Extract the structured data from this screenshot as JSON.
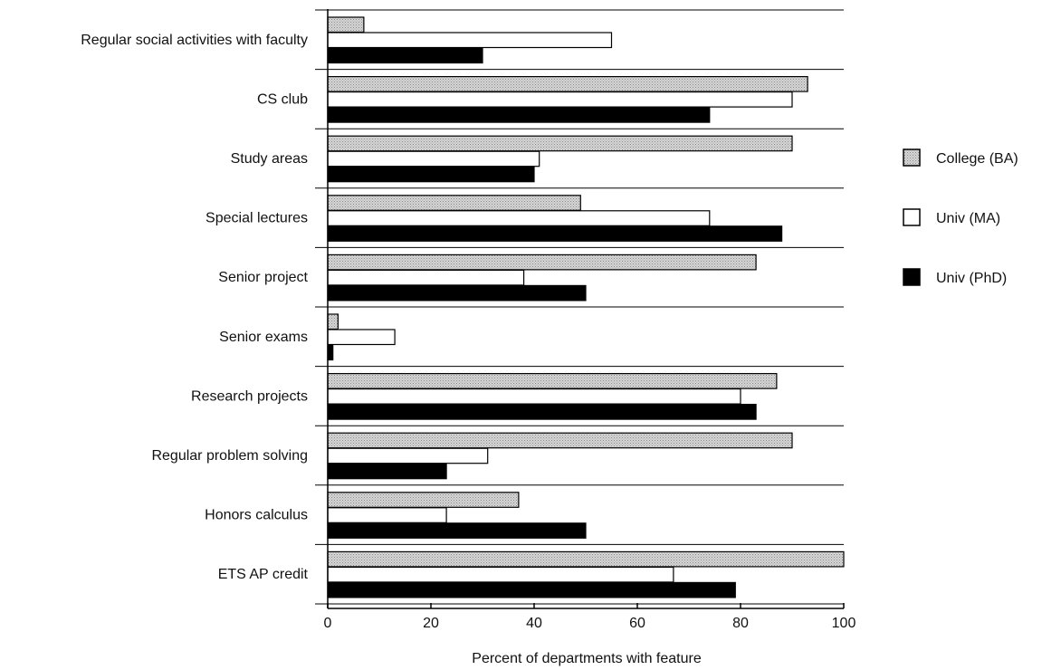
{
  "chart_data": {
    "type": "bar",
    "orientation": "horizontal",
    "title": "",
    "xlabel": "Percent of departments with feature",
    "ylabel": "",
    "xlim": [
      0,
      100
    ],
    "xticks": [
      "0",
      "20",
      "40",
      "60",
      "80",
      "100"
    ],
    "grid": false,
    "legend_position": "right",
    "categories": [
      "Regular social activities with faculty",
      "CS club",
      "Study areas",
      "Special  lectures",
      "Senior project",
      "Senior exams",
      "Research projects",
      "Regular problem  solving",
      "Honors calculus",
      "ETS AP credit"
    ],
    "series": [
      {
        "name": "College (BA)",
        "color": "#cfcfcf",
        "pattern": "stipple",
        "values": [
          7,
          93,
          90,
          49,
          83,
          2,
          87,
          90,
          37,
          100
        ]
      },
      {
        "name": "Univ (MA)",
        "color": "#ffffff",
        "pattern": "hollow",
        "values": [
          55,
          90,
          41,
          74,
          38,
          13,
          80,
          31,
          23,
          67
        ]
      },
      {
        "name": "Univ  (PhD)",
        "color": "#000000",
        "pattern": "solid",
        "values": [
          30,
          74,
          40,
          88,
          50,
          1,
          83,
          23,
          50,
          79
        ]
      }
    ]
  }
}
